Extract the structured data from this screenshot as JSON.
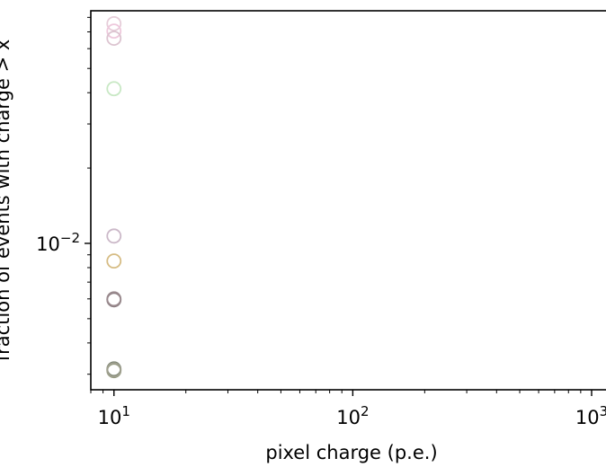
{
  "chart_data": {
    "type": "scatter",
    "title": "",
    "xlabel": "pixel charge (p.e.)",
    "ylabel": "fraction of events with charge > x",
    "xscale": "log",
    "yscale": "log",
    "grid": false,
    "xlim": [
      8,
      1100
    ],
    "ylim": [
      0.0026,
      0.085
    ],
    "x_ticks": [
      {
        "value": 10,
        "base": "10",
        "exp": "1"
      },
      {
        "value": 100,
        "base": "10",
        "exp": "2"
      },
      {
        "value": 1000,
        "base": "10",
        "exp": "3"
      }
    ],
    "y_ticks": [
      {
        "value": 0.01,
        "base": "10",
        "exp": "−2"
      }
    ],
    "marker": "open-circle",
    "points": [
      {
        "x": 10,
        "y": 0.0755,
        "color": "#e6cdd9"
      },
      {
        "x": 10,
        "y": 0.0705,
        "color": "#eec8dc"
      },
      {
        "x": 10,
        "y": 0.066,
        "color": "#dcc4d0"
      },
      {
        "x": 10,
        "y": 0.0415,
        "color": "#c8e8c4"
      },
      {
        "x": 10,
        "y": 0.0107,
        "color": "#cbb8c8"
      },
      {
        "x": 10,
        "y": 0.0085,
        "color": "#d6bc84"
      },
      {
        "x": 10,
        "y": 0.00595,
        "color": "#8a7c80"
      },
      {
        "x": 10,
        "y": 0.006,
        "color": "#9a8a8e"
      },
      {
        "x": 10,
        "y": 0.00315,
        "color": "#7c8472"
      },
      {
        "x": 10,
        "y": 0.0031,
        "color": "#8e9678"
      },
      {
        "x": 10,
        "y": 0.00312,
        "color": "#a0a090"
      }
    ]
  }
}
